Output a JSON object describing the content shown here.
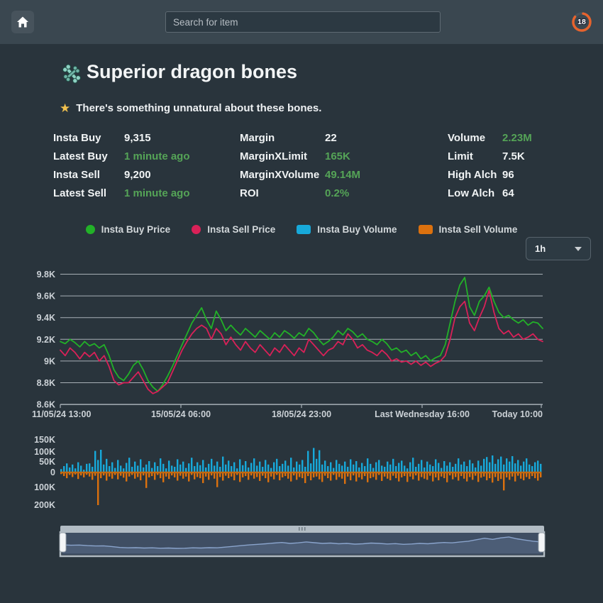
{
  "topbar": {
    "search_placeholder": "Search for item",
    "timer_value": "18",
    "timer_color": "#e7632d"
  },
  "item": {
    "title": "Superior dragon bones",
    "examine": "There's something unnatural about these bones."
  },
  "stats": {
    "columns": [
      [
        {
          "label": "Insta Buy",
          "value": "9,315",
          "green": false
        },
        {
          "label": "Latest Buy",
          "value": "1 minute ago",
          "green": true
        },
        {
          "label": "Insta Sell",
          "value": "9,200",
          "green": false
        },
        {
          "label": "Latest Sell",
          "value": "1 minute ago",
          "green": true
        }
      ],
      [
        {
          "label": "Margin",
          "value": "22",
          "green": false
        },
        {
          "label": "MarginXLimit",
          "value": "165K",
          "green": true
        },
        {
          "label": "MarginXVolume",
          "value": "49.14M",
          "green": true
        },
        {
          "label": "ROI",
          "value": "0.2%",
          "green": true
        }
      ],
      [
        {
          "label": "Volume",
          "value": "2.23M",
          "green": true
        },
        {
          "label": "Limit",
          "value": "7.5K",
          "green": false
        },
        {
          "label": "High Alch",
          "value": "96",
          "green": false
        },
        {
          "label": "Low Alch",
          "value": "64",
          "green": false
        }
      ]
    ]
  },
  "legend": {
    "items": [
      {
        "label": "Insta Buy Price",
        "color": "#22b128",
        "shape": "circle"
      },
      {
        "label": "Insta Sell Price",
        "color": "#d92158",
        "shape": "circle"
      },
      {
        "label": "Insta Buy Volume",
        "color": "#17a9da",
        "shape": "square"
      },
      {
        "label": "Insta Sell Volume",
        "color": "#dc710e",
        "shape": "square"
      }
    ]
  },
  "timeframe": {
    "selected": "1h"
  },
  "colors": {
    "grid": "#a7afb6",
    "axis_text": "#ccd2d7",
    "volume_zero_line": "#c2690f",
    "nav_bg": "#3f4e63",
    "nav_line": "#8aa4cc",
    "scrollbar": "#b2bcc4",
    "handle": "#f3f5f7"
  },
  "chart_data": [
    {
      "type": "line",
      "title": "Price chart",
      "y_tick_labels": [
        "9.8K",
        "9.6K",
        "9.4K",
        "9.2K",
        "9K",
        "8.8K",
        "8.6K"
      ],
      "ylim": [
        8600,
        9800
      ],
      "x_tick_labels": [
        "11/05/24 13:00",
        "15/05/24 06:00",
        "18/05/24 23:00",
        "Last Wednesday 16:00",
        "Today 10:00"
      ],
      "grid": true,
      "legend_position": "top",
      "series": [
        {
          "name": "Insta Buy Price",
          "color": "#22b128",
          "values": [
            9180,
            9160,
            9200,
            9170,
            9130,
            9180,
            9140,
            9160,
            9120,
            9150,
            9050,
            8920,
            8850,
            8820,
            8880,
            8960,
            9000,
            8920,
            8820,
            8760,
            8720,
            8780,
            8860,
            8950,
            9050,
            9150,
            9250,
            9350,
            9420,
            9490,
            9380,
            9300,
            9460,
            9380,
            9280,
            9330,
            9280,
            9240,
            9300,
            9260,
            9220,
            9280,
            9240,
            9200,
            9260,
            9220,
            9280,
            9250,
            9210,
            9260,
            9230,
            9300,
            9260,
            9200,
            9150,
            9180,
            9220,
            9280,
            9240,
            9300,
            9270,
            9220,
            9250,
            9200,
            9180,
            9150,
            9200,
            9160,
            9100,
            9120,
            9080,
            9100,
            9050,
            9080,
            9020,
            9050,
            9000,
            9030,
            9050,
            9150,
            9350,
            9550,
            9700,
            9770,
            9500,
            9420,
            9550,
            9600,
            9680,
            9550,
            9450,
            9400,
            9420,
            9380,
            9350,
            9380,
            9330,
            9360,
            9350,
            9300
          ]
        },
        {
          "name": "Insta Sell Price",
          "color": "#d92158",
          "values": [
            9100,
            9050,
            9120,
            9080,
            9020,
            9080,
            9040,
            9080,
            9000,
            9050,
            8950,
            8820,
            8780,
            8800,
            8800,
            8850,
            8900,
            8820,
            8740,
            8700,
            8720,
            8760,
            8800,
            8900,
            9000,
            9100,
            9180,
            9250,
            9300,
            9330,
            9300,
            9200,
            9300,
            9250,
            9150,
            9220,
            9150,
            9100,
            9180,
            9120,
            9080,
            9150,
            9100,
            9050,
            9120,
            9080,
            9150,
            9100,
            9050,
            9120,
            9080,
            9200,
            9150,
            9100,
            9050,
            9100,
            9120,
            9180,
            9150,
            9250,
            9200,
            9120,
            9150,
            9100,
            9080,
            9050,
            9100,
            9060,
            9000,
            9020,
            8990,
            9000,
            8970,
            9000,
            8960,
            8990,
            8950,
            8980,
            9000,
            9050,
            9200,
            9400,
            9500,
            9550,
            9350,
            9280,
            9400,
            9500,
            9650,
            9450,
            9300,
            9250,
            9280,
            9220,
            9250,
            9200,
            9220,
            9250,
            9200,
            9180
          ]
        }
      ]
    },
    {
      "type": "bar",
      "title": "Volume chart",
      "unit": "K",
      "y_tick_labels_positive": [
        "150K",
        "100K",
        "50K",
        "0"
      ],
      "y_tick_labels_negative": [
        "100K",
        "200K"
      ],
      "series": [
        {
          "name": "Insta Buy Volume",
          "color": "#17a9da",
          "direction": "up",
          "values_k": [
            15,
            28,
            40,
            22,
            35,
            18,
            45,
            30,
            12,
            38,
            40,
            25,
            95,
            55,
            100,
            35,
            60,
            28,
            45,
            20,
            55,
            30,
            18,
            42,
            65,
            25,
            48,
            30,
            58,
            22,
            35,
            50,
            20,
            45,
            28,
            62,
            38,
            18,
            52,
            30,
            25,
            58,
            35,
            48,
            20,
            40,
            65,
            28,
            45,
            32,
            55,
            22,
            38,
            60,
            30,
            48,
            25,
            70,
            35,
            52,
            28,
            45,
            18,
            58,
            32,
            50,
            22,
            42,
            62,
            30,
            48,
            25,
            55,
            35,
            20,
            45,
            60,
            28,
            38,
            52,
            30,
            65,
            22,
            48,
            35,
            55,
            25,
            95,
            40,
            108,
            60,
            98,
            35,
            52,
            28,
            45,
            20,
            55,
            38,
            30,
            48,
            25,
            58,
            35,
            50,
            22,
            42,
            28,
            62,
            38,
            20,
            45,
            55,
            30,
            25,
            48,
            35,
            60,
            28,
            42,
            52,
            30,
            18,
            45,
            65,
            25,
            38,
            55,
            22,
            48,
            35,
            28,
            58,
            42,
            20,
            50,
            30,
            45,
            25,
            38,
            62,
            35,
            48,
            28,
            55,
            40,
            22,
            52,
            30,
            60,
            68,
            45,
            75,
            38,
            58,
            70,
            35,
            62,
            48,
            72,
            40,
            55,
            30,
            48,
            62,
            35,
            28,
            45,
            52,
            38
          ]
        },
        {
          "name": "Insta Sell Volume",
          "color": "#dc710e",
          "direction": "down",
          "values_k": [
            10,
            22,
            35,
            15,
            28,
            12,
            40,
            18,
            30,
            14,
            25,
            45,
            20,
            200,
            35,
            18,
            50,
            25,
            38,
            15,
            42,
            20,
            32,
            55,
            25,
            15,
            38,
            28,
            48,
            18,
            95,
            30,
            22,
            45,
            15,
            35,
            60,
            25,
            40,
            18,
            30,
            50,
            20,
            38,
            25,
            55,
            15,
            42,
            28,
            35,
            65,
            25,
            45,
            18,
            38,
            90,
            28,
            50,
            20,
            35,
            25,
            48,
            15,
            58,
            30,
            22,
            45,
            18,
            38,
            28,
            52,
            20,
            35,
            60,
            25,
            42,
            15,
            48,
            30,
            22,
            38,
            55,
            18,
            45,
            28,
            35,
            65,
            22,
            48,
            30,
            25,
            42,
            58,
            20,
            35,
            50,
            15,
            45,
            28,
            38,
            70,
            25,
            48,
            18,
            55,
            30,
            42,
            22,
            60,
            35,
            28,
            45,
            15,
            52,
            25,
            38,
            48,
            20,
            35,
            55,
            30,
            22,
            58,
            25,
            42,
            18,
            50,
            28,
            38,
            45,
            20,
            55,
            30,
            48,
            25,
            35,
            60,
            18,
            42,
            28,
            50,
            22,
            38,
            55,
            28,
            45,
            20,
            58,
            32,
            25,
            48,
            35,
            62,
            28,
            52,
            40,
            110,
            30,
            45,
            25,
            55,
            20,
            38,
            48,
            28,
            40,
            22,
            35,
            50,
            30
          ]
        }
      ]
    },
    {
      "type": "area",
      "title": "Navigator",
      "color": "#8aa4cc",
      "values_norm": [
        0.42,
        0.4,
        0.41,
        0.38,
        0.36,
        0.37,
        0.33,
        0.28,
        0.26,
        0.27,
        0.25,
        0.26,
        0.24,
        0.25,
        0.23,
        0.24,
        0.26,
        0.25,
        0.27,
        0.26,
        0.3,
        0.34,
        0.38,
        0.42,
        0.45,
        0.48,
        0.52,
        0.55,
        0.5,
        0.53,
        0.58,
        0.54,
        0.5,
        0.52,
        0.48,
        0.5,
        0.46,
        0.48,
        0.52,
        0.5,
        0.47,
        0.49,
        0.45,
        0.47,
        0.5,
        0.48,
        0.52,
        0.55,
        0.53,
        0.58,
        0.62,
        0.7,
        0.78,
        0.72,
        0.8,
        0.85,
        0.75,
        0.68,
        0.62,
        0.58
      ]
    }
  ]
}
